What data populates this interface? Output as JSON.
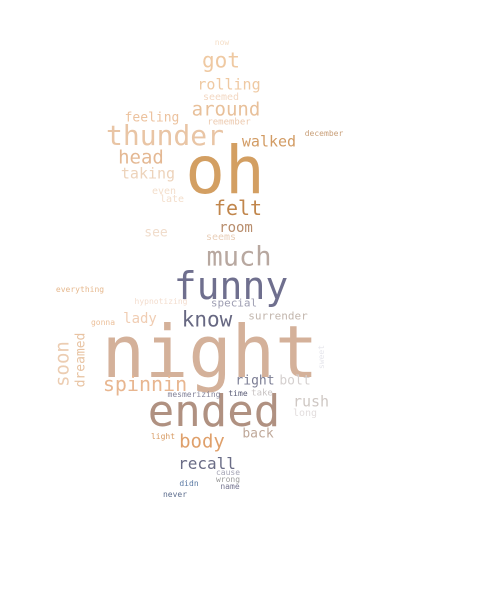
{
  "words": [
    {
      "text": "now",
      "color": "#f5dfc8"
    },
    {
      "text": "got",
      "color": "#efc9a2"
    },
    {
      "text": "rolling",
      "color": "#efc9a2"
    },
    {
      "text": "seemed",
      "color": "#f3d8c3"
    },
    {
      "text": "around",
      "color": "#e8c09a"
    },
    {
      "text": "feeling",
      "color": "#ecc29e"
    },
    {
      "text": "remember",
      "color": "#ecc9ae"
    },
    {
      "text": "december",
      "color": "#c9a07a"
    },
    {
      "text": "thunder",
      "color": "#e9c5a5"
    },
    {
      "text": "walked",
      "color": "#d29b63"
    },
    {
      "text": "oh",
      "color": "#d39f62"
    },
    {
      "text": "head",
      "color": "#e4b893"
    },
    {
      "text": "taking",
      "color": "#edd3bb"
    },
    {
      "text": "even",
      "color": "#f3decb"
    },
    {
      "text": "late",
      "color": "#f3decb"
    },
    {
      "text": "felt",
      "color": "#c1864c"
    },
    {
      "text": "room",
      "color": "#b88d6c"
    },
    {
      "text": "see",
      "color": "#f0dccb"
    },
    {
      "text": "seems",
      "color": "#e9cfb9"
    },
    {
      "text": "much",
      "color": "#b8a8a0"
    },
    {
      "text": "funny",
      "color": "#6f6f8e"
    },
    {
      "text": "everything",
      "color": "#e6b98f"
    },
    {
      "text": "hypnotizing",
      "color": "#f3ddce"
    },
    {
      "text": "special",
      "color": "#9e9eb2"
    },
    {
      "text": "gonna",
      "color": "#ecc09b"
    },
    {
      "text": "lady",
      "color": "#f0cdb3"
    },
    {
      "text": "know",
      "color": "#676882"
    },
    {
      "text": "surrender",
      "color": "#c2b6ad"
    },
    {
      "text": "soon",
      "color": "#eccdb2"
    },
    {
      "text": "dreamed",
      "color": "#e8c3a2"
    },
    {
      "text": "night",
      "color": "#d4b19a"
    },
    {
      "text": "sweet",
      "color": "#e6e6ec"
    },
    {
      "text": "spinnin",
      "color": "#e8b690"
    },
    {
      "text": "right",
      "color": "#7b7d94"
    },
    {
      "text": "bolt",
      "color": "#d5d0cf"
    },
    {
      "text": "ended",
      "color": "#b09181"
    },
    {
      "text": "mesmerizing",
      "color": "#84849a"
    },
    {
      "text": "time",
      "color": "#5b5d77"
    },
    {
      "text": "take",
      "color": "#c9c4c4"
    },
    {
      "text": "rush",
      "color": "#cfc8c4"
    },
    {
      "text": "long",
      "color": "#e3dede"
    },
    {
      "text": "back",
      "color": "#bfa899"
    },
    {
      "text": "light",
      "color": "#d79a62"
    },
    {
      "text": "body",
      "color": "#dfa06b"
    },
    {
      "text": "recall",
      "color": "#6a6c86"
    },
    {
      "text": "cause",
      "color": "#a5a5b5"
    },
    {
      "text": "wrong",
      "color": "#9b9b9b"
    },
    {
      "text": "didn",
      "color": "#5a79a3"
    },
    {
      "text": "name",
      "color": "#767691"
    },
    {
      "text": "never",
      "color": "#5f6f8f"
    }
  ]
}
